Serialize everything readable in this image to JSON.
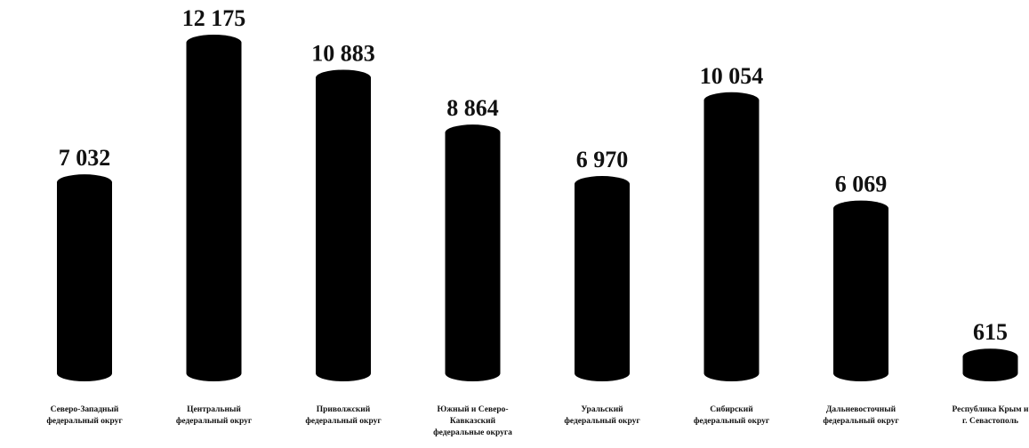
{
  "chart_data": {
    "type": "bar",
    "title": "",
    "xlabel": "",
    "ylabel": "",
    "ylim": [
      0,
      12175
    ],
    "grid": false,
    "legend": "none",
    "bar_color": "#000000",
    "categories": [
      "Северо-Западный федеральный округ",
      "Центральный федеральный округ",
      "Приволжский федеральный округ",
      "Южный и Северо-Кавказский федеральные округа",
      "Уральский федеральный округ",
      "Сибирский федеральный округ",
      "Дальневосточный федеральный округ",
      "Республика Крым и г. Севастополь"
    ],
    "category_lines": [
      [
        "Северо-Западный",
        "федеральный округ"
      ],
      [
        "Центральный",
        "федеральный округ"
      ],
      [
        "Приволжский",
        "федеральный округ"
      ],
      [
        "Южный и Северо-",
        "Кавказский",
        "федеральные округа"
      ],
      [
        "Уральский",
        "федеральный округ"
      ],
      [
        "Сибирский",
        "федеральный округ"
      ],
      [
        "Дальневосточный",
        "федеральный округ"
      ],
      [
        "Республика Крым и",
        "г. Севастополь"
      ]
    ],
    "values": [
      7032,
      12175,
      10883,
      8864,
      6970,
      10054,
      6069,
      615
    ],
    "value_labels": [
      "7 032",
      "12 175",
      "10 883",
      "8 864",
      "6 970",
      "10 054",
      "6 069",
      "615"
    ]
  }
}
